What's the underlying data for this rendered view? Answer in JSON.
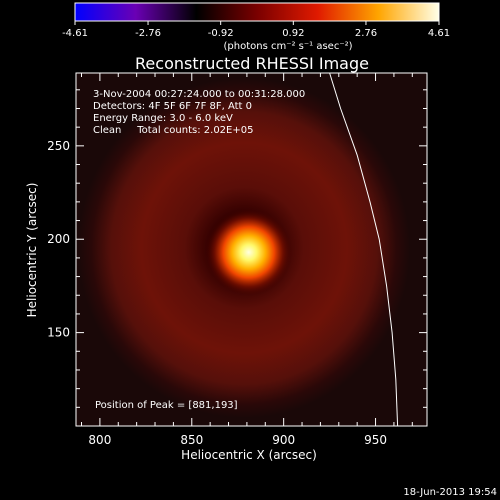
{
  "colorbar": {
    "ticks": [
      "-4.61",
      "-2.76",
      "-0.92",
      "0.92",
      "2.76",
      "4.61"
    ],
    "range": [
      -4.61,
      4.61
    ],
    "units": "(photons cm⁻² s⁻¹ asec⁻²)",
    "colors": [
      "#0000ff",
      "#6a00b4",
      "#000000",
      "#7a0000",
      "#e01a00",
      "#ffa500",
      "#ffffe8"
    ]
  },
  "title": "Reconstructed RHESSI Image",
  "annotations": {
    "time": "3-Nov-2004 00:27:24.000 to 00:31:28.000",
    "detectors": "Detectors: 4F 5F 6F 7F 8F, Att 0",
    "energy": "Energy Range: 3.0 - 6.0 keV",
    "clean": "Clean     Total counts: 2.02E+05",
    "peak": "Position of Peak = [881,193]"
  },
  "footer": {
    "date": "18-Jun-2013 19:54"
  },
  "chart_data": {
    "type": "heatmap",
    "title": "Reconstructed RHESSI Image",
    "xlabel": "Heliocentric X (arcsec)",
    "ylabel": "Heliocentric Y (arcsec)",
    "xlim": [
      787,
      978
    ],
    "ylim": [
      100,
      289
    ],
    "xticks": [
      800,
      850,
      900,
      950
    ],
    "yticks": [
      150,
      200,
      250
    ],
    "peak": [
      881,
      193
    ],
    "limb_curve": [
      [
        925,
        289
      ],
      [
        931,
        270
      ],
      [
        940,
        245
      ],
      [
        947,
        220
      ],
      [
        952,
        200
      ],
      [
        956,
        175
      ],
      [
        959,
        150
      ],
      [
        961,
        125
      ],
      [
        962,
        100
      ]
    ]
  }
}
